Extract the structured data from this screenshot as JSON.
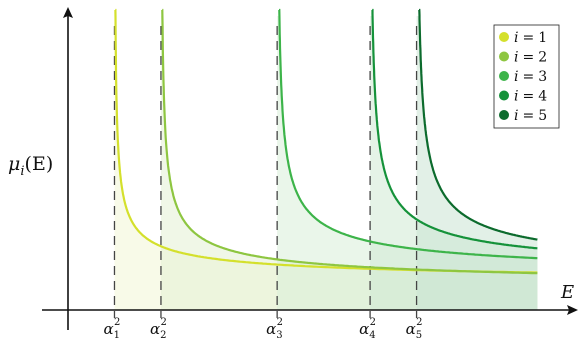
{
  "chart_data": {
    "type": "line",
    "ylabel": {
      "base": "μ",
      "sub": "i",
      "arg": "(E)"
    },
    "xlabel": "E",
    "alpha_ticks": [
      {
        "base": "α",
        "sub": "1",
        "sup": "2"
      },
      {
        "base": "α",
        "sub": "2",
        "sup": "2"
      },
      {
        "base": "α",
        "sub": "3",
        "sup": "2"
      },
      {
        "base": "α",
        "sub": "4",
        "sup": "2"
      },
      {
        "base": "α",
        "sub": "5",
        "sup": "2"
      }
    ],
    "alpha_sq": [
      1.0,
      2.0,
      4.5,
      6.5,
      7.5
    ],
    "xlim": [
      0,
      10.5
    ],
    "ylim": [
      0,
      6.0
    ],
    "series": [
      {
        "name": "i = 1",
        "asymptote": 1.0,
        "legend_label": {
          "lhs": "i",
          "rhs": "1"
        },
        "color": "#d4e02c",
        "fill": "#f2f6d6"
      },
      {
        "name": "i = 2",
        "asymptote": 2.0,
        "legend_label": {
          "lhs": "i",
          "rhs": "2"
        },
        "color": "#8ec641",
        "fill": "#e4f1d4"
      },
      {
        "name": "i = 3",
        "asymptote": 4.5,
        "legend_label": {
          "lhs": "i",
          "rhs": "3"
        },
        "color": "#3db44a",
        "fill": "#d8eed8"
      },
      {
        "name": "i = 4",
        "asymptote": 6.5,
        "legend_label": {
          "lhs": "i",
          "rhs": "4"
        },
        "color": "#15923a",
        "fill": "#cfe9d4"
      },
      {
        "name": "i = 5",
        "asymptote": 7.5,
        "legend_label": {
          "lhs": "i",
          "rhs": "5"
        },
        "color": "#0c6b2d",
        "fill": "#cbe3d4"
      }
    ],
    "curve_scale": [
      0.8,
      1.0,
      1.2,
      1.25,
      1.35
    ],
    "curve_offset": [
      0.5,
      0.4,
      0.55,
      0.6,
      0.6
    ],
    "legend_position": "top-right",
    "grid": false
  },
  "legend": {
    "equals": "="
  }
}
